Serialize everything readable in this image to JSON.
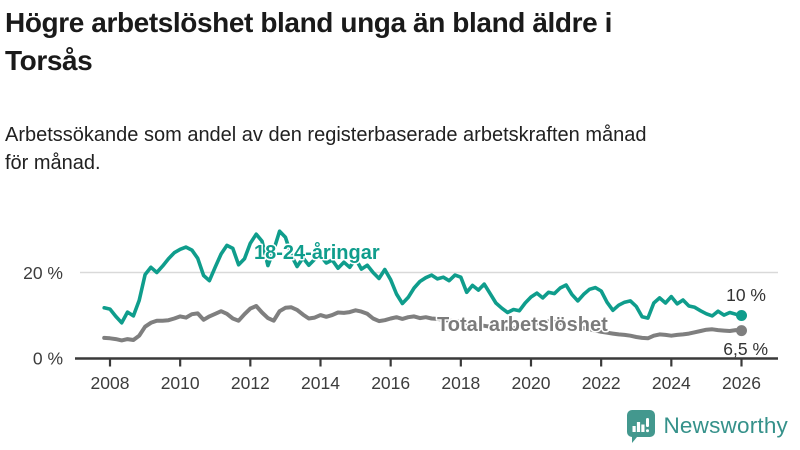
{
  "header": {
    "title_lines": [
      "Högre arbetslöshet bland unga än bland äldre i",
      "Torsås"
    ],
    "subtitle_lines": [
      "Arbetssökande som andel av den registerbaserade arbetskraften månad",
      "för månad."
    ]
  },
  "chart_data": {
    "type": "line",
    "x_start": 2007.8333,
    "x_step_years": 0.16667,
    "x_ticks": [
      2008,
      2010,
      2012,
      2014,
      2016,
      2018,
      2020,
      2022,
      2024,
      2026
    ],
    "ylim": [
      0,
      30
    ],
    "y_gridline_value": 20,
    "y_axis_labels": {
      "zero": "0 %",
      "twenty": "20 %"
    },
    "grid": "single light horizontal gridline at 20 %",
    "legend_position": "inline labels on lines",
    "gridline_color": "#d9d9d9",
    "axis_color": "#3a3a3a",
    "series": [
      {
        "name": "18-24-åringar",
        "color": "#0f9d8c",
        "end_label": "10 %",
        "values": [
          11.8,
          11.5,
          9.8,
          8.3,
          10.8,
          9.9,
          13.5,
          19.5,
          21.2,
          20.0,
          21.5,
          23.2,
          24.6,
          25.4,
          25.9,
          25.2,
          23.3,
          19.3,
          18.1,
          21.3,
          24.3,
          26.3,
          25.6,
          21.8,
          23.2,
          26.8,
          28.9,
          27.3,
          21.6,
          25.2,
          29.6,
          28.2,
          24.0,
          21.4,
          23.4,
          21.7,
          23.1,
          23.9,
          22.2,
          22.9,
          21.0,
          22.4,
          21.2,
          23.2,
          20.8,
          21.7,
          20.0,
          18.6,
          20.7,
          18.3,
          15.0,
          12.8,
          14.2,
          16.4,
          17.9,
          18.8,
          19.4,
          18.5,
          18.9,
          18.1,
          19.4,
          18.9,
          15.4,
          17.0,
          15.9,
          17.3,
          15.1,
          12.9,
          11.7,
          10.7,
          11.4,
          11.1,
          12.9,
          14.3,
          15.2,
          14.1,
          15.4,
          15.1,
          16.4,
          17.1,
          14.9,
          13.4,
          14.9,
          16.1,
          16.5,
          15.7,
          13.1,
          11.2,
          12.4,
          13.1,
          13.4,
          12.1,
          9.7,
          9.4,
          12.9,
          14.1,
          12.9,
          14.4,
          12.7,
          13.6,
          12.2,
          11.9,
          11.1,
          10.4,
          9.9,
          11.0,
          10.1,
          10.7,
          10.3,
          10.0
        ]
      },
      {
        "name": "Total arbetslöshet",
        "color": "#7f7f7f",
        "label_color": "#7b7b7b",
        "end_label": "6,5 %",
        "values": [
          4.8,
          4.7,
          4.5,
          4.2,
          4.5,
          4.3,
          5.3,
          7.4,
          8.3,
          8.8,
          8.8,
          8.9,
          9.3,
          9.8,
          9.5,
          10.3,
          10.5,
          9.0,
          9.8,
          10.4,
          11.0,
          10.4,
          9.3,
          8.8,
          10.3,
          11.6,
          12.2,
          10.7,
          9.4,
          8.8,
          11.0,
          11.8,
          11.9,
          11.3,
          10.2,
          9.3,
          9.5,
          10.1,
          9.7,
          10.1,
          10.7,
          10.6,
          10.8,
          11.2,
          10.9,
          10.4,
          9.3,
          8.7,
          8.9,
          9.3,
          9.6,
          9.2,
          9.6,
          9.8,
          9.4,
          9.6,
          9.3,
          9.2,
          9.0,
          8.8,
          8.7,
          8.5,
          8.2,
          8.0,
          7.8,
          7.6,
          7.4,
          7.2,
          7.0,
          6.9,
          7.0,
          7.2,
          7.5,
          7.8,
          8.2,
          8.5,
          8.6,
          8.5,
          8.3,
          8.0,
          7.7,
          7.4,
          7.1,
          6.8,
          6.5,
          6.2,
          6.0,
          5.8,
          5.6,
          5.5,
          5.3,
          5.0,
          4.8,
          4.7,
          5.3,
          5.6,
          5.5,
          5.3,
          5.5,
          5.6,
          5.8,
          6.1,
          6.4,
          6.7,
          6.8,
          6.6,
          6.5,
          6.4,
          6.6,
          6.5
        ]
      }
    ]
  },
  "branding": {
    "logo_text": "Newsworthy",
    "logo_color": "#35918a",
    "icon_color": "#43988e",
    "icon": "newsworthy-chart-bubble-icon"
  }
}
